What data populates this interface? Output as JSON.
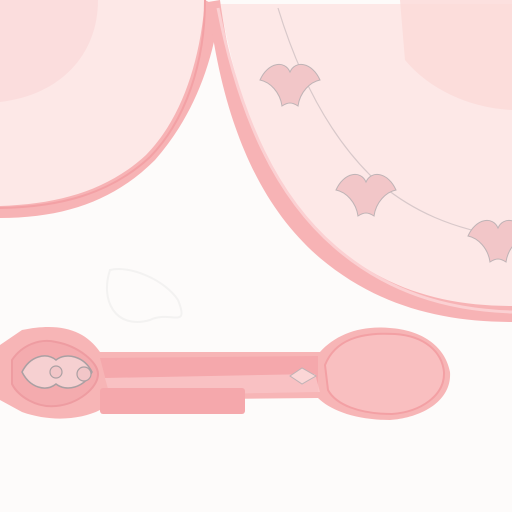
{
  "colors": {
    "background": "#fdfbfa",
    "fabric_light": "#fde8e7",
    "fabric_mid": "#fbdcdc",
    "trim": "#f7b3b5",
    "trim_dark": "#f3a1a5",
    "ornament": "#f2c6c8",
    "outline": "#bfb3b6",
    "spoon_pink": "#f5a8ac",
    "spoon_light": "#fbcccd"
  },
  "elements": {
    "curtain_left": "left-fabric-panel",
    "curtain_right": "right-fabric-panel",
    "spoon": "pink-spoon",
    "ornaments": [
      "fleur-ornament",
      "fleur-ornament",
      "fleur-ornament",
      "fleur-ornament"
    ]
  }
}
